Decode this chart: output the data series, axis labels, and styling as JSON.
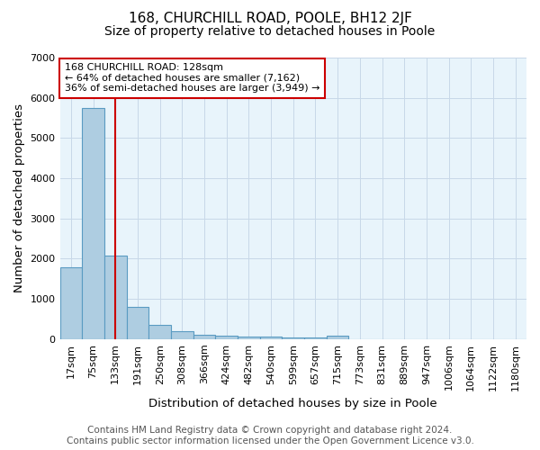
{
  "title": "168, CHURCHILL ROAD, POOLE, BH12 2JF",
  "subtitle": "Size of property relative to detached houses in Poole",
  "xlabel": "Distribution of detached houses by size in Poole",
  "ylabel": "Number of detached properties",
  "footer_line1": "Contains HM Land Registry data © Crown copyright and database right 2024.",
  "footer_line2": "Contains public sector information licensed under the Open Government Licence v3.0.",
  "categories": [
    "17sqm",
    "75sqm",
    "133sqm",
    "191sqm",
    "250sqm",
    "308sqm",
    "366sqm",
    "424sqm",
    "482sqm",
    "540sqm",
    "599sqm",
    "657sqm",
    "715sqm",
    "773sqm",
    "831sqm",
    "889sqm",
    "947sqm",
    "1006sqm",
    "1064sqm",
    "1122sqm",
    "1180sqm"
  ],
  "values": [
    1780,
    5750,
    2070,
    800,
    345,
    200,
    110,
    80,
    70,
    55,
    40,
    30,
    80,
    0,
    0,
    0,
    0,
    0,
    0,
    0,
    0
  ],
  "bar_color": "#aecde1",
  "bar_edge_color": "#5a9bc2",
  "vline_index": 2,
  "vline_color": "#cc0000",
  "annotation_line1": "168 CHURCHILL ROAD: 128sqm",
  "annotation_line2": "← 64% of detached houses are smaller (7,162)",
  "annotation_line3": "36% of semi-detached houses are larger (3,949) →",
  "annotation_box_color": "#ffffff",
  "annotation_box_edge": "#cc0000",
  "ylim": [
    0,
    7000
  ],
  "yticks": [
    0,
    1000,
    2000,
    3000,
    4000,
    5000,
    6000,
    7000
  ],
  "background_color": "#ffffff",
  "plot_bg_color": "#e8f4fb",
  "grid_color": "#c8d8e8",
  "title_fontsize": 11,
  "subtitle_fontsize": 10,
  "axis_label_fontsize": 9.5,
  "tick_fontsize": 8,
  "footer_fontsize": 7.5,
  "annotation_fontsize": 8
}
